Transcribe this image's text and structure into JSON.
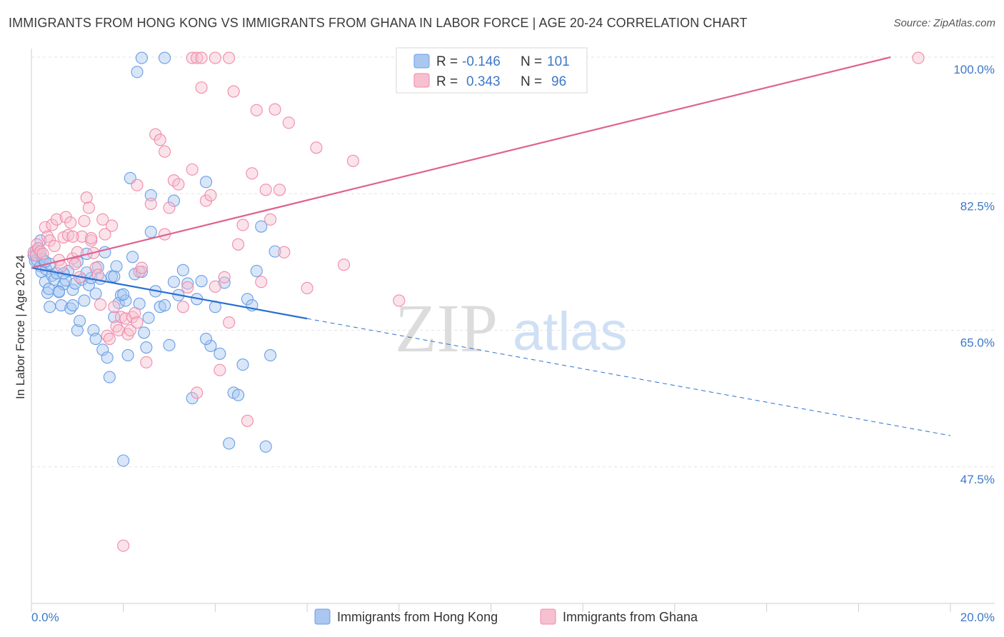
{
  "title": "IMMIGRANTS FROM HONG KONG VS IMMIGRANTS FROM GHANA IN LABOR FORCE | AGE 20-24 CORRELATION CHART",
  "source": "Source: ZipAtlas.com",
  "watermark": {
    "zip": "ZIP",
    "atlas": "atlas"
  },
  "chart_data": {
    "type": "scatter",
    "ylabel": "In Labor Force | Age 20-24",
    "xlim": [
      0,
      20
    ],
    "ylim": [
      30,
      100
    ],
    "x_tick_labels": [
      "0.0%",
      "20.0%"
    ],
    "y_ticks": [
      47.5,
      65.0,
      82.5,
      100.0
    ],
    "y_tick_labels": [
      "47.5%",
      "65.0%",
      "82.5%",
      "100.0%"
    ],
    "grid": true,
    "legend_position": "top-center",
    "series": [
      {
        "name": "Immigrants from Hong Kong",
        "color": "#6a9ee6",
        "fill": "#a9c7f0",
        "R": "-0.146",
        "N": "101",
        "trend": {
          "x": [
            0.0,
            6.0
          ],
          "y": [
            73.0,
            66.5
          ],
          "dashed_to": [
            20.0,
            51.5
          ],
          "color": "#2a6fd1"
        },
        "points": [
          [
            0.05,
            74.6
          ],
          [
            0.08,
            73.9
          ],
          [
            0.1,
            75.2
          ],
          [
            0.12,
            74.0
          ],
          [
            0.15,
            75.5
          ],
          [
            0.18,
            74.8
          ],
          [
            0.2,
            73.2
          ],
          [
            0.22,
            72.5
          ],
          [
            0.25,
            74.1
          ],
          [
            0.3,
            71.2
          ],
          [
            0.32,
            72.8
          ],
          [
            0.35,
            69.8
          ],
          [
            0.38,
            70.3
          ],
          [
            0.4,
            73.5
          ],
          [
            0.45,
            72.0
          ],
          [
            0.5,
            71.5
          ],
          [
            0.55,
            72.3
          ],
          [
            0.6,
            70.0
          ],
          [
            0.65,
            68.2
          ],
          [
            0.7,
            70.9
          ],
          [
            0.75,
            71.4
          ],
          [
            0.8,
            72.6
          ],
          [
            0.85,
            67.8
          ],
          [
            0.9,
            70.2
          ],
          [
            0.95,
            71.0
          ],
          [
            1.0,
            65.0
          ],
          [
            1.05,
            66.2
          ],
          [
            1.1,
            71.5
          ],
          [
            1.15,
            68.8
          ],
          [
            1.2,
            74.8
          ],
          [
            1.25,
            70.8
          ],
          [
            1.3,
            71.7
          ],
          [
            1.35,
            65.0
          ],
          [
            1.4,
            63.9
          ],
          [
            1.45,
            73.1
          ],
          [
            1.5,
            71.6
          ],
          [
            1.55,
            62.5
          ],
          [
            1.6,
            75.0
          ],
          [
            1.65,
            61.5
          ],
          [
            1.7,
            59.0
          ],
          [
            1.75,
            71.9
          ],
          [
            1.8,
            71.9
          ],
          [
            1.85,
            73.2
          ],
          [
            1.9,
            68.5
          ],
          [
            1.95,
            69.5
          ],
          [
            2.0,
            48.3
          ],
          [
            2.05,
            68.8
          ],
          [
            2.1,
            61.8
          ],
          [
            2.15,
            84.5
          ],
          [
            2.2,
            74.4
          ],
          [
            2.25,
            72.2
          ],
          [
            2.3,
            98.1
          ],
          [
            2.35,
            68.4
          ],
          [
            2.4,
            72.5
          ],
          [
            2.45,
            64.7
          ],
          [
            2.5,
            62.8
          ],
          [
            2.55,
            66.6
          ],
          [
            2.6,
            77.6
          ],
          [
            2.7,
            70.0
          ],
          [
            2.8,
            68.0
          ],
          [
            2.9,
            68.2
          ],
          [
            3.0,
            63.1
          ],
          [
            3.1,
            71.2
          ],
          [
            3.2,
            69.5
          ],
          [
            3.3,
            72.7
          ],
          [
            3.4,
            71.0
          ],
          [
            3.5,
            56.3
          ],
          [
            3.6,
            69.0
          ],
          [
            3.7,
            71.3
          ],
          [
            3.8,
            84.0
          ],
          [
            3.9,
            63.0
          ],
          [
            4.0,
            68.0
          ],
          [
            4.1,
            62.0
          ],
          [
            4.2,
            71.1
          ],
          [
            4.3,
            50.5
          ],
          [
            4.4,
            57.0
          ],
          [
            4.5,
            56.7
          ],
          [
            4.6,
            60.6
          ],
          [
            4.7,
            69.0
          ],
          [
            4.8,
            68.2
          ],
          [
            4.9,
            72.6
          ],
          [
            5.0,
            78.3
          ],
          [
            5.1,
            50.1
          ],
          [
            5.2,
            61.8
          ],
          [
            5.3,
            75.1
          ],
          [
            2.4,
            99.9
          ],
          [
            2.9,
            99.9
          ],
          [
            0.2,
            76.5
          ],
          [
            0.4,
            68.0
          ],
          [
            0.6,
            69.9
          ],
          [
            0.9,
            68.2
          ],
          [
            1.4,
            69.7
          ],
          [
            1.8,
            66.7
          ],
          [
            2.0,
            69.6
          ],
          [
            3.8,
            63.9
          ],
          [
            1.0,
            73.8
          ],
          [
            0.3,
            73.8
          ],
          [
            0.7,
            72.3
          ],
          [
            1.2,
            72.4
          ],
          [
            2.6,
            82.3
          ],
          [
            3.1,
            81.6
          ]
        ]
      },
      {
        "name": "Immigrants from Ghana",
        "color": "#f08aaa",
        "fill": "#f7c0d1",
        "R": "0.343",
        "N": "96",
        "trend": {
          "x": [
            0.0,
            18.7
          ],
          "y": [
            73.0,
            100.0
          ],
          "color": "#e0628d"
        },
        "points": [
          [
            0.05,
            75.0
          ],
          [
            0.1,
            74.6
          ],
          [
            0.12,
            76.0
          ],
          [
            0.15,
            75.5
          ],
          [
            0.2,
            75.1
          ],
          [
            0.25,
            74.8
          ],
          [
            0.3,
            78.2
          ],
          [
            0.35,
            77.0
          ],
          [
            0.4,
            76.5
          ],
          [
            0.45,
            78.5
          ],
          [
            0.5,
            75.8
          ],
          [
            0.55,
            79.2
          ],
          [
            0.6,
            74.0
          ],
          [
            0.65,
            73.2
          ],
          [
            0.7,
            76.9
          ],
          [
            0.75,
            79.5
          ],
          [
            0.8,
            77.2
          ],
          [
            0.85,
            78.8
          ],
          [
            0.9,
            74.2
          ],
          [
            0.95,
            73.5
          ],
          [
            1.0,
            75.0
          ],
          [
            1.05,
            71.8
          ],
          [
            1.1,
            77.0
          ],
          [
            1.15,
            79.0
          ],
          [
            1.2,
            82.0
          ],
          [
            1.25,
            80.7
          ],
          [
            1.3,
            76.5
          ],
          [
            1.35,
            74.9
          ],
          [
            1.4,
            73.0
          ],
          [
            1.45,
            72.1
          ],
          [
            1.5,
            68.3
          ],
          [
            1.55,
            79.2
          ],
          [
            1.6,
            77.3
          ],
          [
            1.65,
            64.3
          ],
          [
            1.7,
            63.9
          ],
          [
            1.75,
            78.4
          ],
          [
            1.8,
            68.0
          ],
          [
            1.85,
            65.5
          ],
          [
            1.9,
            65.0
          ],
          [
            1.95,
            66.7
          ],
          [
            2.0,
            37.4
          ],
          [
            2.05,
            66.5
          ],
          [
            2.1,
            64.5
          ],
          [
            2.15,
            65.0
          ],
          [
            2.2,
            66.7
          ],
          [
            2.25,
            67.2
          ],
          [
            2.3,
            83.6
          ],
          [
            2.35,
            72.5
          ],
          [
            2.4,
            73.0
          ],
          [
            2.5,
            60.9
          ],
          [
            2.6,
            81.2
          ],
          [
            2.7,
            90.1
          ],
          [
            2.8,
            89.4
          ],
          [
            2.9,
            87.9
          ],
          [
            3.0,
            80.7
          ],
          [
            3.1,
            84.2
          ],
          [
            3.2,
            83.7
          ],
          [
            3.3,
            68.0
          ],
          [
            3.4,
            70.5
          ],
          [
            3.5,
            85.6
          ],
          [
            3.6,
            57.0
          ],
          [
            3.7,
            96.1
          ],
          [
            3.8,
            81.6
          ],
          [
            3.9,
            82.3
          ],
          [
            4.0,
            70.6
          ],
          [
            4.1,
            59.9
          ],
          [
            4.2,
            71.8
          ],
          [
            4.3,
            66.0
          ],
          [
            4.4,
            95.6
          ],
          [
            4.5,
            76.0
          ],
          [
            4.6,
            78.5
          ],
          [
            4.7,
            53.4
          ],
          [
            4.8,
            85.1
          ],
          [
            4.9,
            93.2
          ],
          [
            5.0,
            71.2
          ],
          [
            5.1,
            83.0
          ],
          [
            5.2,
            79.2
          ],
          [
            5.3,
            93.3
          ],
          [
            5.4,
            83.0
          ],
          [
            5.5,
            75.0
          ],
          [
            5.6,
            91.6
          ],
          [
            6.0,
            70.4
          ],
          [
            6.2,
            88.4
          ],
          [
            6.8,
            73.4
          ],
          [
            7.0,
            86.7
          ],
          [
            8.0,
            68.8
          ],
          [
            19.3,
            99.9
          ],
          [
            3.5,
            99.9
          ],
          [
            3.6,
            99.9
          ],
          [
            3.7,
            99.9
          ],
          [
            4.3,
            99.9
          ],
          [
            4.0,
            99.9
          ],
          [
            2.3,
            66.0
          ],
          [
            1.3,
            76.8
          ],
          [
            0.9,
            77.0
          ],
          [
            2.9,
            77.3
          ]
        ]
      }
    ]
  }
}
